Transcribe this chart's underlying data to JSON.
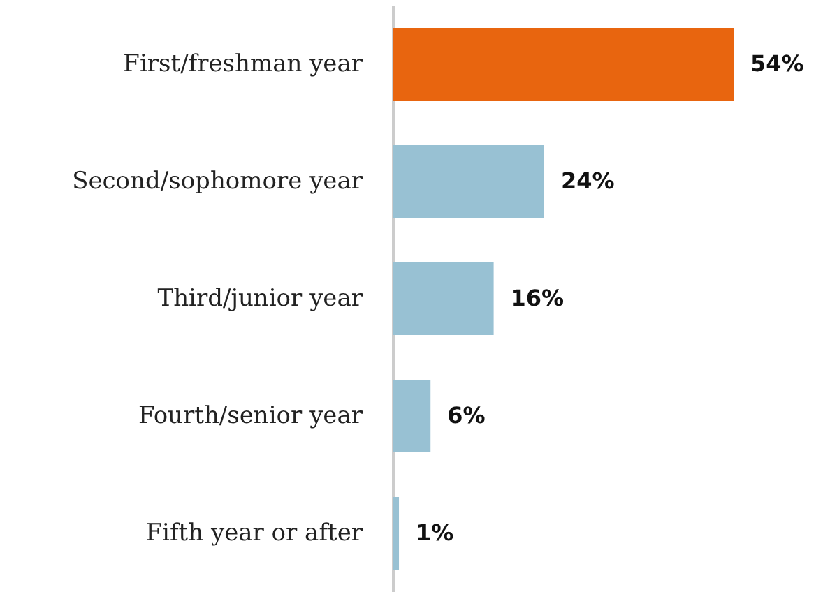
{
  "chart_data": {
    "type": "bar",
    "orientation": "horizontal",
    "categories": [
      "First/freshman year",
      "Second/sophomore year",
      "Third/junior year",
      "Fourth/senior year",
      "Fifth year or after"
    ],
    "values": [
      54,
      24,
      16,
      6,
      1
    ],
    "colors": [
      "#e8650f",
      "#98c1d3",
      "#98c1d3",
      "#98c1d3",
      "#98c1d3"
    ],
    "value_labels": [
      "54%",
      "24%",
      "16%",
      "6%",
      "1%"
    ],
    "grid": false
  }
}
